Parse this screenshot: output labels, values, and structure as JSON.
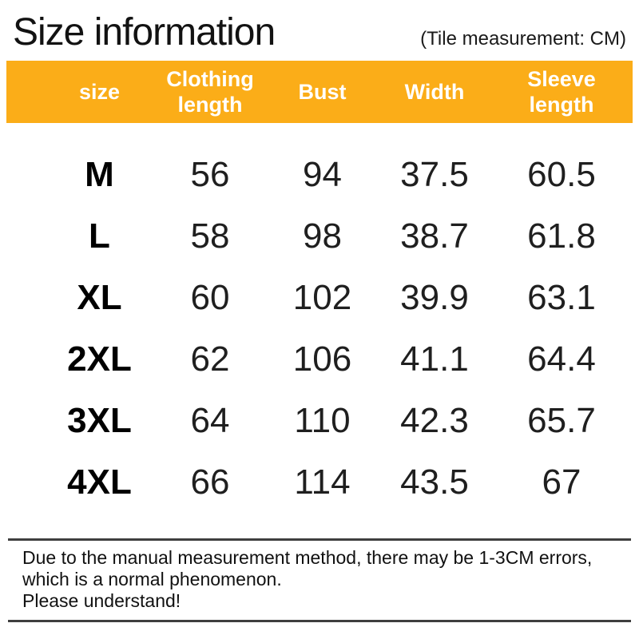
{
  "header": {
    "title": "Size information",
    "unit_note": "(Tile measurement: CM)"
  },
  "table": {
    "columns": [
      "size",
      "Clothing length",
      "Bust",
      "Width",
      "Sleeve length"
    ],
    "rows": [
      [
        "M",
        "56",
        "94",
        "37.5",
        "60.5"
      ],
      [
        "L",
        "58",
        "98",
        "38.7",
        "61.8"
      ],
      [
        "XL",
        "60",
        "102",
        "39.9",
        "63.1"
      ],
      [
        "2XL",
        "62",
        "106",
        "41.1",
        "64.4"
      ],
      [
        "3XL",
        "64",
        "110",
        "42.3",
        "65.7"
      ],
      [
        "4XL",
        "66",
        "114",
        "43.5",
        "67"
      ]
    ]
  },
  "footer": {
    "lines": [
      "Due to the manual measurement method, there may be 1-3CM errors,",
      "which is a normal phenomenon.",
      "Please understand!"
    ]
  },
  "colors": {
    "header_bg": "#FBAD18",
    "header_text": "#FFFFFF",
    "divider": "#3F3F3F"
  }
}
